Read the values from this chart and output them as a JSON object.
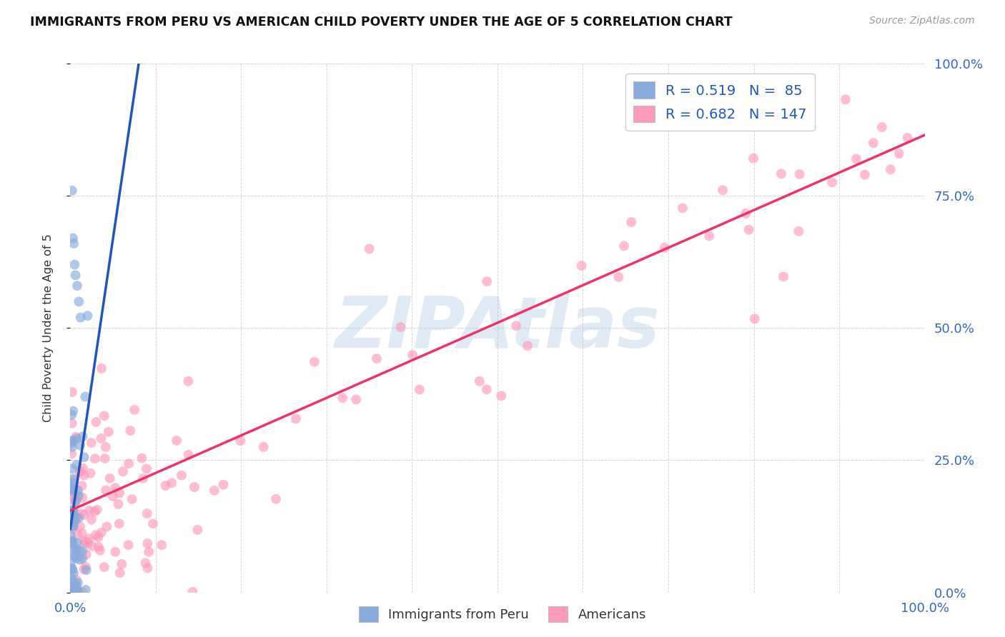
{
  "title": "IMMIGRANTS FROM PERU VS AMERICAN CHILD POVERTY UNDER THE AGE OF 5 CORRELATION CHART",
  "source": "Source: ZipAtlas.com",
  "ylabel": "Child Poverty Under the Age of 5",
  "blue_color": "#88AADD",
  "pink_color": "#FF99BB",
  "blue_line_color": "#2255BB",
  "pink_line_color": "#EE3366",
  "watermark": "ZIPAtlas",
  "background_color": "#FFFFFF",
  "grid_color": "#CCCCCC",
  "legend_text1": "R = 0.519   N =  85",
  "legend_text2": "R = 0.682   N = 147"
}
